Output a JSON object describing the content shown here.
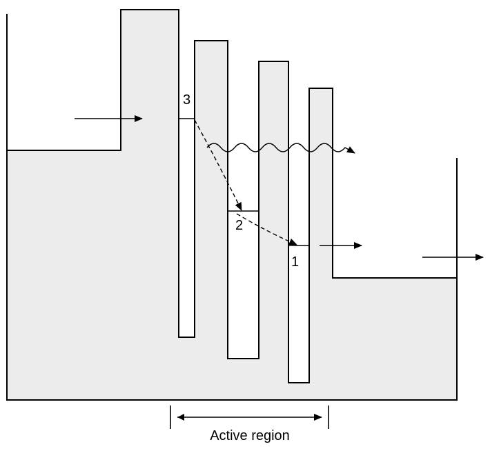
{
  "diagram": {
    "state_labels": [
      "1",
      "2",
      "3"
    ],
    "active_region_label": "Active region"
  }
}
